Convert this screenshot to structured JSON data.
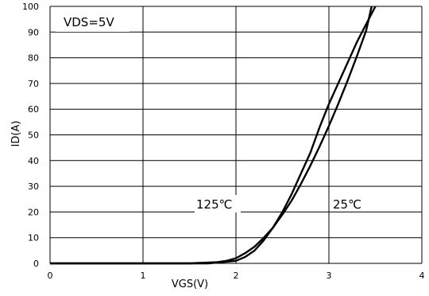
{
  "chart_data": {
    "type": "line",
    "xlabel": "VGS(V)",
    "ylabel": "ID(A)",
    "xlim": [
      0,
      4
    ],
    "ylim": [
      0,
      100
    ],
    "x_ticks": [
      "0",
      "1",
      "2",
      "3",
      "4"
    ],
    "y_ticks": [
      "0",
      "10",
      "20",
      "30",
      "40",
      "50",
      "60",
      "70",
      "80",
      "90",
      "100"
    ],
    "grid": true,
    "annotations": [
      {
        "text": "VDS=5V"
      },
      {
        "text": "125℃"
      },
      {
        "text": "25℃"
      }
    ],
    "series": [
      {
        "name": "125℃",
        "x": [
          0,
          1.5,
          1.8,
          1.9,
          2.0,
          2.1,
          2.2,
          2.3,
          2.4,
          2.5,
          2.6,
          2.7,
          2.8,
          2.9,
          3.0,
          3.1,
          3.2,
          3.3,
          3.4,
          3.46
        ],
        "y": [
          0,
          0,
          0.5,
          1,
          2,
          4,
          6.5,
          10,
          14,
          19,
          24.5,
          31,
          38,
          45.5,
          53.5,
          62,
          71,
          80.5,
          90.5,
          100
        ]
      },
      {
        "name": "25℃",
        "x": [
          0,
          1.7,
          2.0,
          2.1,
          2.2,
          2.3,
          2.4,
          2.5,
          2.6,
          2.7,
          2.8,
          2.9,
          3.0,
          3.1,
          3.2,
          3.3,
          3.4,
          3.5
        ],
        "y": [
          0,
          0,
          1,
          2.5,
          5,
          9,
          14,
          20,
          27,
          35,
          43,
          53,
          62,
          70,
          78,
          86,
          93,
          100
        ]
      }
    ]
  }
}
